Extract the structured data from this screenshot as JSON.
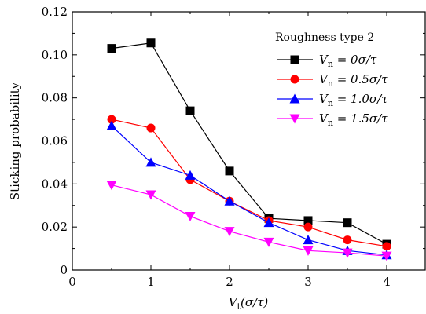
{
  "chart_data": {
    "type": "line",
    "xlabel": "V_t(σ/τ)",
    "xlabel_parts": {
      "main": "V",
      "sub": "t",
      "rest": "(σ/τ)"
    },
    "ylabel": "Sticking probability",
    "xlim": [
      0,
      4.5
    ],
    "ylim": [
      0,
      0.12
    ],
    "xticks": [
      0,
      1,
      2,
      3,
      4
    ],
    "yticks": [
      0,
      0.02,
      0.04,
      0.06,
      0.08,
      0.1,
      0.12
    ],
    "xtick_labels": [
      "0",
      "1",
      "2",
      "3",
      "4"
    ],
    "ytick_labels": [
      "0",
      "0.02",
      "0.04",
      "0.06",
      "0.08",
      "0.10",
      "0.12"
    ],
    "grid": false,
    "legend": {
      "title": "Roughness type 2",
      "position": "top-right"
    },
    "x": [
      0.5,
      1.0,
      1.5,
      2.0,
      2.5,
      3.0,
      3.5,
      4.0
    ],
    "series": [
      {
        "name": "V_n = 0σ/τ",
        "label_main": "V",
        "label_sub": "n",
        "label_rest": " = 0σ/τ",
        "color": "#000000",
        "marker": "square",
        "values": [
          0.103,
          0.1055,
          0.074,
          0.046,
          0.024,
          0.023,
          0.022,
          0.012
        ]
      },
      {
        "name": "V_n = 0.5σ/τ",
        "label_main": "V",
        "label_sub": "n",
        "label_rest": " = 0.5σ/τ",
        "color": "#ff0000",
        "marker": "circle",
        "values": [
          0.07,
          0.066,
          0.042,
          0.032,
          0.023,
          0.02,
          0.014,
          0.011
        ]
      },
      {
        "name": "V_n = 1.0σ/τ",
        "label_main": "V",
        "label_sub": "n",
        "label_rest": " = 1.0σ/τ",
        "color": "#0000ff",
        "marker": "triangle-up",
        "values": [
          0.067,
          0.05,
          0.044,
          0.032,
          0.022,
          0.014,
          0.009,
          0.007
        ]
      },
      {
        "name": "V_n = 1.5σ/τ",
        "label_main": "V",
        "label_sub": "n",
        "label_rest": " = 1.5σ/τ",
        "color": "#ff00ff",
        "marker": "triangle-down",
        "values": [
          0.0395,
          0.035,
          0.025,
          0.018,
          0.013,
          0.009,
          0.008,
          0.0065
        ]
      }
    ]
  }
}
